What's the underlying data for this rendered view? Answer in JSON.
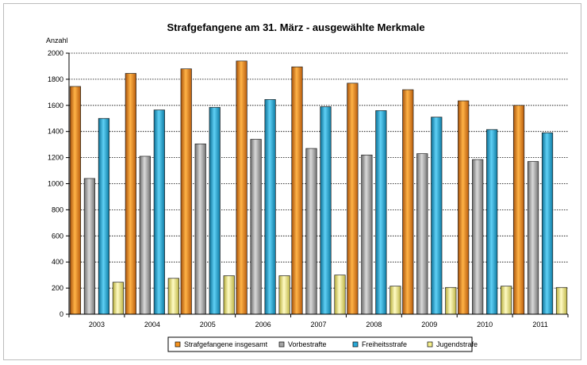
{
  "chart_data": {
    "type": "bar",
    "title": "Strafgefangene am 31. März - ausgewählte Merkmale",
    "ylabel": "Anzahl",
    "xlabel": "",
    "ylim": [
      0,
      2000
    ],
    "ytick_step": 200,
    "yticks": [
      "0",
      "200",
      "400",
      "600",
      "800",
      "1000",
      "1200",
      "1400",
      "1600",
      "1800",
      "2000"
    ],
    "grid": true,
    "legend_position": "bottom",
    "categories": [
      "2003",
      "2004",
      "2005",
      "2006",
      "2007",
      "2008",
      "2009",
      "2010",
      "2011"
    ],
    "series": [
      {
        "name": "Strafgefangene insgesamt",
        "color": "#f7931e",
        "values": [
          1745,
          1845,
          1880,
          1940,
          1895,
          1770,
          1720,
          1635,
          1600
        ]
      },
      {
        "name": "Vorbestrafte",
        "color": "#a6a6a6",
        "values": [
          1040,
          1210,
          1305,
          1340,
          1270,
          1220,
          1230,
          1185,
          1170
        ]
      },
      {
        "name": "Freiheitsstrafe",
        "color": "#29a9d8",
        "values": [
          1500,
          1565,
          1585,
          1645,
          1590,
          1560,
          1510,
          1415,
          1390
        ]
      },
      {
        "name": "Jugendstrafe",
        "color": "#f6f08c",
        "values": [
          245,
          275,
          295,
          295,
          300,
          215,
          205,
          215,
          205
        ]
      }
    ]
  }
}
